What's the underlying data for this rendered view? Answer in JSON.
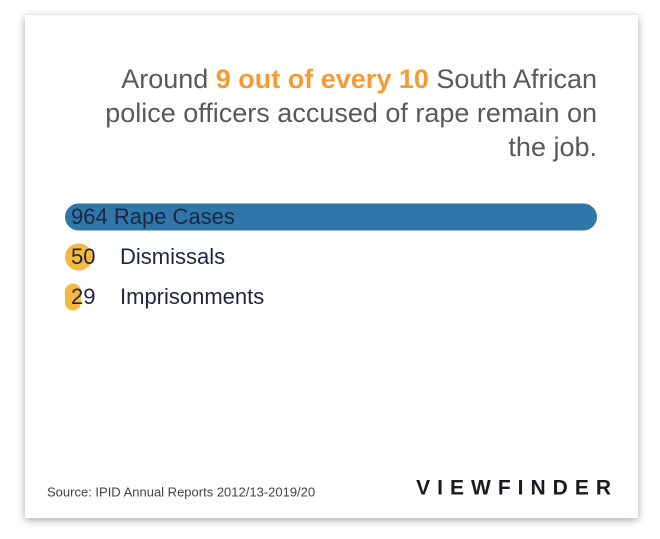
{
  "chart_data": {
    "type": "bar",
    "title_before": "Around",
    "title_highlight": "9 out of every 10",
    "title_after": "South African police officers accused of rape remain on the job.",
    "categories": [
      "Rape Cases",
      "Dismissals",
      "Imprisonments"
    ],
    "values": [
      964,
      50,
      29
    ],
    "colors": [
      "#2f77a8",
      "#f6b93f",
      "#f6b93f"
    ],
    "source": "Source: IPID Annual Reports 2012/13-2019/20",
    "logo": "VIEWFINDER"
  }
}
